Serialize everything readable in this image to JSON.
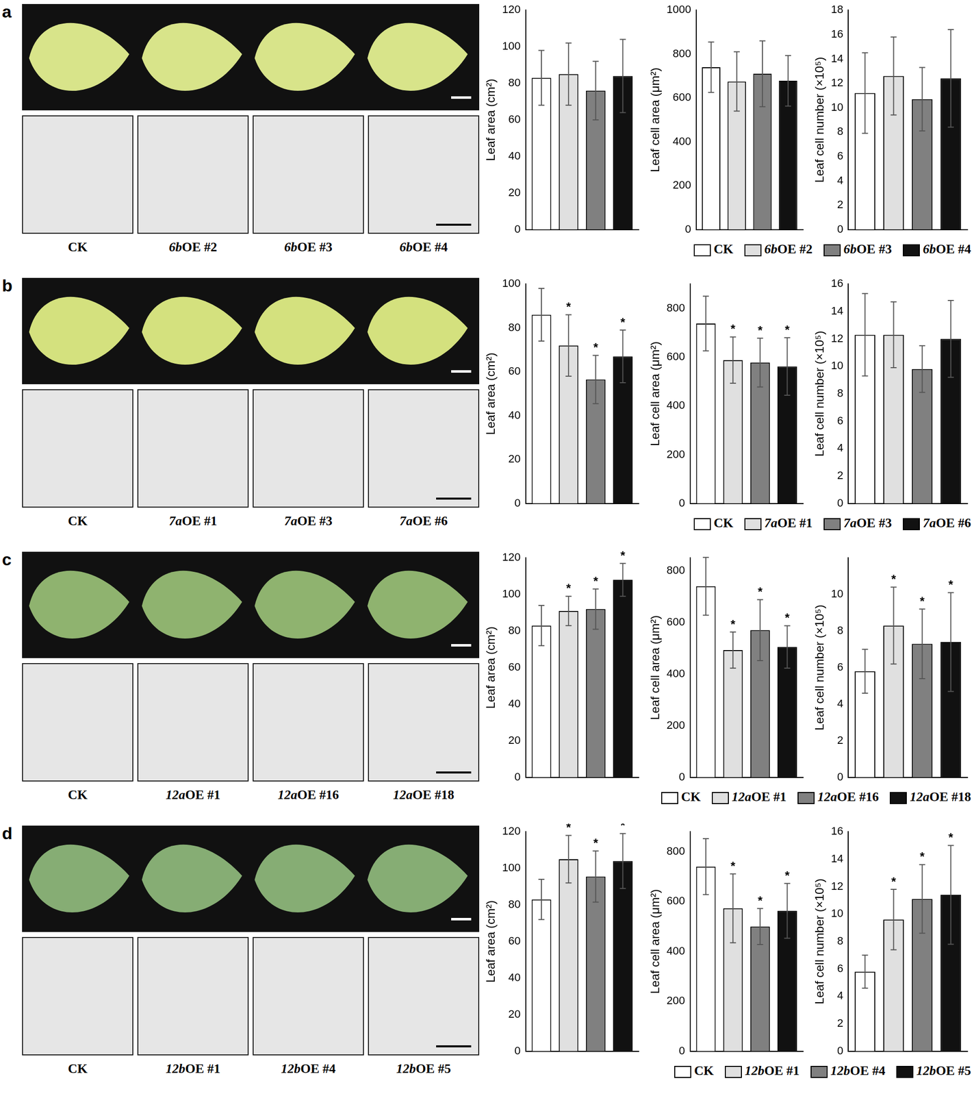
{
  "chart_data": [
    {
      "type": "bar",
      "panel": "a",
      "y_label": "Leaf area (cm²)",
      "ylim": [
        0,
        120
      ],
      "yticks": [
        0,
        20,
        40,
        60,
        80,
        100,
        120
      ],
      "tick_labels": "y",
      "series": [
        {
          "name": "CK",
          "color": "#ffffff",
          "values": [
            83
          ],
          "error": [
            15
          ]
        },
        {
          "name": "6bOE #2",
          "color": "#e0e0e0",
          "values": [
            85
          ],
          "error": [
            17
          ]
        },
        {
          "name": "6bOE #3",
          "color": "#808080",
          "values": [
            76
          ],
          "error": [
            16
          ]
        },
        {
          "name": "6bOE #4",
          "color": "#111111",
          "values": [
            84
          ],
          "error": [
            20
          ]
        }
      ]
    },
    {
      "type": "bar",
      "panel": "a",
      "y_label": "Leaf cell area (μm²)",
      "ylim": [
        0,
        1000
      ],
      "yticks": [
        0,
        200,
        400,
        600,
        800,
        1000
      ],
      "tick_labels": "y",
      "series": [
        {
          "name": "CK",
          "color": "#ffffff",
          "values": [
            740
          ],
          "error": [
            115
          ]
        },
        {
          "name": "6bOE #2",
          "color": "#e0e0e0",
          "values": [
            675
          ],
          "error": [
            135
          ]
        },
        {
          "name": "6bOE #3",
          "color": "#808080",
          "values": [
            710
          ],
          "error": [
            150
          ]
        },
        {
          "name": "6bOE #4",
          "color": "#111111",
          "values": [
            678
          ],
          "error": [
            115
          ]
        }
      ]
    },
    {
      "type": "bar",
      "panel": "a",
      "y_label": "Leaf cell number (×10⁵)",
      "ylim": [
        0,
        18
      ],
      "yticks": [
        0,
        2,
        4,
        6,
        8,
        10,
        12,
        14,
        16,
        18
      ],
      "tick_labels": "y",
      "legend": "bottom",
      "series": [
        {
          "name": "CK",
          "color": "#ffffff",
          "values": [
            11.2
          ],
          "error": [
            3.3
          ]
        },
        {
          "name": "6bOE #2",
          "color": "#e0e0e0",
          "values": [
            12.6
          ],
          "error": [
            3.2
          ]
        },
        {
          "name": "6bOE #3",
          "color": "#808080",
          "values": [
            10.7
          ],
          "error": [
            2.6
          ]
        },
        {
          "name": "6bOE #4",
          "color": "#111111",
          "values": [
            12.4
          ],
          "error": [
            4.0
          ]
        }
      ]
    },
    {
      "type": "bar",
      "panel": "b",
      "y_label": "Leaf area (cm²)",
      "ylim": [
        0,
        100
      ],
      "yticks": [
        0,
        20,
        40,
        60,
        80,
        100
      ],
      "tick_labels": "y",
      "series": [
        {
          "name": "CK",
          "color": "#ffffff",
          "values": [
            86
          ],
          "error": [
            12
          ]
        },
        {
          "name": "7aOE #1",
          "color": "#e0e0e0",
          "values": [
            72
          ],
          "error": [
            14
          ],
          "annotation": "*"
        },
        {
          "name": "7aOE #3",
          "color": "#808080",
          "values": [
            56.5
          ],
          "error": [
            11
          ],
          "annotation": "*"
        },
        {
          "name": "7aOE #6",
          "color": "#111111",
          "values": [
            67
          ],
          "error": [
            12
          ],
          "annotation": "*"
        }
      ]
    },
    {
      "type": "bar",
      "panel": "b",
      "y_label": "Leaf cell area (μm²)",
      "ylim": [
        0,
        900
      ],
      "yticks": [
        0,
        200,
        400,
        600,
        800
      ],
      "tick_labels": "y",
      "series": [
        {
          "name": "CK",
          "color": "#ffffff",
          "values": [
            738
          ],
          "error": [
            112
          ]
        },
        {
          "name": "7aOE #1",
          "color": "#e0e0e0",
          "values": [
            588
          ],
          "error": [
            95
          ],
          "annotation": "*"
        },
        {
          "name": "7aOE #3",
          "color": "#808080",
          "values": [
            578
          ],
          "error": [
            100
          ],
          "annotation": "*"
        },
        {
          "name": "7aOE #6",
          "color": "#111111",
          "values": [
            562
          ],
          "error": [
            118
          ],
          "annotation": "*"
        }
      ]
    },
    {
      "type": "bar",
      "panel": "b",
      "y_label": "Leaf cell number (×10⁵)",
      "ylim": [
        0,
        16
      ],
      "yticks": [
        0,
        2,
        4,
        6,
        8,
        10,
        12,
        14,
        16
      ],
      "tick_labels": "y",
      "legend": "bottom",
      "series": [
        {
          "name": "CK",
          "color": "#ffffff",
          "values": [
            12.3
          ],
          "error": [
            3.0
          ]
        },
        {
          "name": "7aOE #1",
          "color": "#e0e0e0",
          "values": [
            12.3
          ],
          "error": [
            2.4
          ]
        },
        {
          "name": "7aOE #3",
          "color": "#808080",
          "values": [
            9.8
          ],
          "error": [
            1.7
          ]
        },
        {
          "name": "7aOE #6",
          "color": "#111111",
          "values": [
            12.0
          ],
          "error": [
            2.8
          ]
        }
      ]
    },
    {
      "type": "bar",
      "panel": "c",
      "y_label": "Leaf area (cm²)",
      "ylim": [
        0,
        120
      ],
      "yticks": [
        0,
        20,
        40,
        60,
        80,
        100,
        120
      ],
      "tick_labels": "y",
      "series": [
        {
          "name": "CK",
          "color": "#ffffff",
          "values": [
            83
          ],
          "error": [
            11
          ]
        },
        {
          "name": "12aOE #1",
          "color": "#e0e0e0",
          "values": [
            91
          ],
          "error": [
            8
          ],
          "annotation": "*"
        },
        {
          "name": "12aOE #16",
          "color": "#808080",
          "values": [
            92
          ],
          "error": [
            11
          ],
          "annotation": "*"
        },
        {
          "name": "12aOE #18",
          "color": "#111111",
          "values": [
            108
          ],
          "error": [
            9
          ],
          "annotation": "*"
        }
      ]
    },
    {
      "type": "bar",
      "panel": "c",
      "y_label": "Leaf cell area (μm²)",
      "ylim": [
        0,
        850
      ],
      "yticks": [
        0,
        200,
        400,
        600,
        800
      ],
      "tick_labels": "y",
      "series": [
        {
          "name": "CK",
          "color": "#ffffff",
          "values": [
            740
          ],
          "error": [
            112
          ]
        },
        {
          "name": "12aOE #1",
          "color": "#e0e0e0",
          "values": [
            493
          ],
          "error": [
            70
          ],
          "annotation": "*"
        },
        {
          "name": "12aOE #16",
          "color": "#808080",
          "values": [
            570
          ],
          "error": [
            118
          ],
          "annotation": "*"
        },
        {
          "name": "12aOE #18",
          "color": "#111111",
          "values": [
            505
          ],
          "error": [
            82
          ],
          "annotation": "*"
        }
      ]
    },
    {
      "type": "bar",
      "panel": "c",
      "y_label": "Leaf cell number (×10⁵)",
      "ylim": [
        0,
        12
      ],
      "yticks": [
        0,
        2,
        4,
        6,
        8,
        10
      ],
      "tick_labels": "y",
      "legend": "bottom",
      "series": [
        {
          "name": "CK",
          "color": "#ffffff",
          "values": [
            5.8
          ],
          "error": [
            1.2
          ]
        },
        {
          "name": "12aOE #1",
          "color": "#e0e0e0",
          "values": [
            8.3
          ],
          "error": [
            2.1
          ],
          "annotation": "*"
        },
        {
          "name": "12aOE #16",
          "color": "#808080",
          "values": [
            7.3
          ],
          "error": [
            1.9
          ],
          "annotation": "*"
        },
        {
          "name": "12aOE #18",
          "color": "#111111",
          "values": [
            7.4
          ],
          "error": [
            2.7
          ],
          "annotation": "*"
        }
      ]
    },
    {
      "type": "bar",
      "panel": "d",
      "y_label": "Leaf area (cm²)",
      "ylim": [
        0,
        120
      ],
      "yticks": [
        0,
        20,
        40,
        60,
        80,
        100,
        120
      ],
      "tick_labels": "y",
      "series": [
        {
          "name": "CK",
          "color": "#ffffff",
          "values": [
            83
          ],
          "error": [
            11
          ]
        },
        {
          "name": "12bOE #1",
          "color": "#e0e0e0",
          "values": [
            105
          ],
          "error": [
            13
          ],
          "annotation": "*"
        },
        {
          "name": "12bOE #4",
          "color": "#808080",
          "values": [
            95.5
          ],
          "error": [
            14
          ],
          "annotation": "*"
        },
        {
          "name": "12bOE #5",
          "color": "#111111",
          "values": [
            104
          ],
          "error": [
            15
          ],
          "annotation": "*"
        }
      ]
    },
    {
      "type": "bar",
      "panel": "d",
      "y_label": "Leaf cell area (μm²)",
      "ylim": [
        0,
        880
      ],
      "yticks": [
        0,
        200,
        400,
        600,
        800
      ],
      "tick_labels": "y",
      "series": [
        {
          "name": "CK",
          "color": "#ffffff",
          "values": [
            740
          ],
          "error": [
            112
          ]
        },
        {
          "name": "12bOE #1",
          "color": "#e0e0e0",
          "values": [
            573
          ],
          "error": [
            138
          ],
          "annotation": "*"
        },
        {
          "name": "12bOE #4",
          "color": "#808080",
          "values": [
            500
          ],
          "error": [
            72
          ],
          "annotation": "*"
        },
        {
          "name": "12bOE #5",
          "color": "#111111",
          "values": [
            563
          ],
          "error": [
            110
          ],
          "annotation": "*"
        }
      ]
    },
    {
      "type": "bar",
      "panel": "d",
      "y_label": "Leaf cell number (×10⁵)",
      "ylim": [
        0,
        16
      ],
      "yticks": [
        0,
        2,
        4,
        6,
        8,
        10,
        12,
        14,
        16
      ],
      "tick_labels": "y",
      "legend": "bottom",
      "series": [
        {
          "name": "CK",
          "color": "#ffffff",
          "values": [
            5.8
          ],
          "error": [
            1.2
          ]
        },
        {
          "name": "12bOE #1",
          "color": "#e0e0e0",
          "values": [
            9.6
          ],
          "error": [
            2.2
          ],
          "annotation": "*"
        },
        {
          "name": "12bOE #4",
          "color": "#808080",
          "values": [
            11.1
          ],
          "error": [
            2.5
          ],
          "annotation": "*"
        },
        {
          "name": "12bOE #5",
          "color": "#111111",
          "values": [
            11.4
          ],
          "error": [
            3.6
          ],
          "annotation": "*"
        }
      ]
    }
  ],
  "panels": [
    {
      "label": "a",
      "images": [
        "CK",
        "6bOE #2",
        "6bOE #3",
        "6bOE #4"
      ]
    },
    {
      "label": "b",
      "images": [
        "CK",
        "7aOE #1",
        "7aOE #3",
        "7aOE #6"
      ]
    },
    {
      "label": "c",
      "images": [
        "CK",
        "12aOE #1",
        "12aOE #16",
        "12aOE #18"
      ]
    },
    {
      "label": "d",
      "images": [
        "CK",
        "12bOE #1",
        "12bOE #4",
        "12bOE #5"
      ]
    }
  ]
}
